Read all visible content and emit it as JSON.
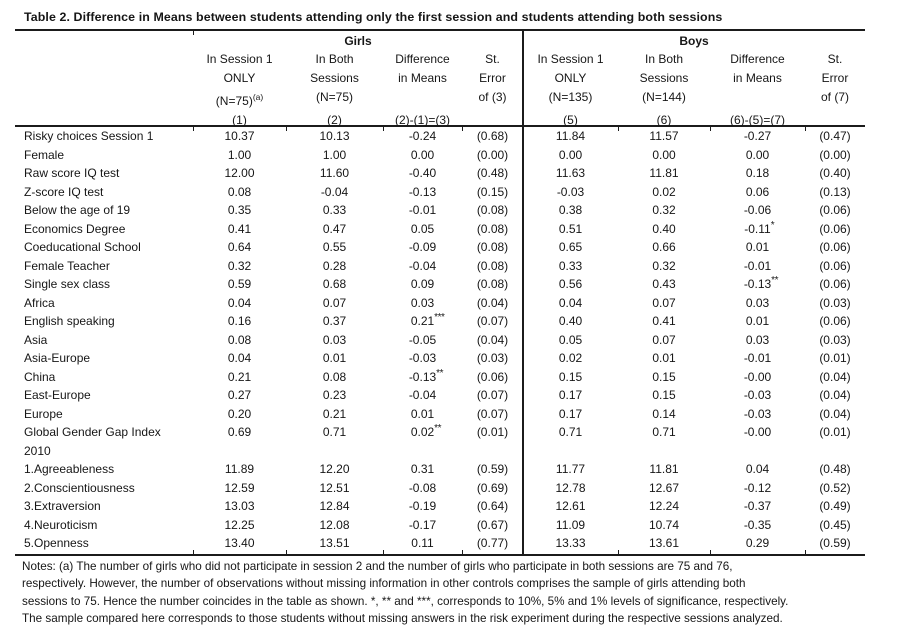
{
  "title": "Table 2. Difference in Means between students attending only the first session and students attending both sessions",
  "table": {
    "groups": {
      "girls": "Girls",
      "boys": "Boys"
    },
    "headers": {
      "g1": {
        "l1": "In Session 1",
        "l2": "ONLY",
        "l3": "(N=75)",
        "l3_sup": "(a)",
        "l4": "(1)"
      },
      "g2": {
        "l1": "In Both",
        "l2": "Sessions",
        "l3": "(N=75)",
        "l4": "(2)"
      },
      "g3": {
        "l1": "Difference",
        "l2": "in Means",
        "l3": "",
        "l4": "(2)-(1)=(3)"
      },
      "g4": {
        "l1": "St.",
        "l2": "Error",
        "l3": "of (3)",
        "l4": ""
      },
      "b1": {
        "l1": "In Session 1",
        "l2": "ONLY",
        "l3": "(N=135)",
        "l4": "(5)"
      },
      "b2": {
        "l1": "In Both",
        "l2": "Sessions",
        "l3": "(N=144)",
        "l4": "(6)"
      },
      "b3": {
        "l1": "Difference",
        "l2": "in Means",
        "l3": "",
        "l4": "(6)-(5)=(7)"
      },
      "b4": {
        "l1": "St.",
        "l2": "Error",
        "l3": "of (7)",
        "l4": ""
      }
    },
    "rows": [
      {
        "label": "Risky choices Session 1",
        "g1": "10.37",
        "g2": "10.13",
        "g3": "-0.24",
        "g3_sig": "",
        "g4": "(0.68)",
        "b1": "11.84",
        "b2": "11.57",
        "b3": "-0.27",
        "b3_sig": "",
        "b4": "(0.47)"
      },
      {
        "label": "Female",
        "g1": "1.00",
        "g2": "1.00",
        "g3": "0.00",
        "g3_sig": "",
        "g4": "(0.00)",
        "b1": "0.00",
        "b2": "0.00",
        "b3": "0.00",
        "b3_sig": "",
        "b4": "(0.00)"
      },
      {
        "label": "Raw score IQ test",
        "g1": "12.00",
        "g2": "11.60",
        "g3": "-0.40",
        "g3_sig": "",
        "g4": "(0.48)",
        "b1": "11.63",
        "b2": "11.81",
        "b3": "0.18",
        "b3_sig": "",
        "b4": "(0.40)"
      },
      {
        "label": "Z-score IQ test",
        "g1": "0.08",
        "g2": "-0.04",
        "g3": "-0.13",
        "g3_sig": "",
        "g4": "(0.15)",
        "b1": "-0.03",
        "b2": "0.02",
        "b3": "0.06",
        "b3_sig": "",
        "b4": "(0.13)"
      },
      {
        "label": "Below the age of 19",
        "g1": "0.35",
        "g2": "0.33",
        "g3": "-0.01",
        "g3_sig": "",
        "g4": "(0.08)",
        "b1": "0.38",
        "b2": "0.32",
        "b3": "-0.06",
        "b3_sig": "",
        "b4": "(0.06)"
      },
      {
        "label": "Economics Degree",
        "g1": "0.41",
        "g2": "0.47",
        "g3": "0.05",
        "g3_sig": "",
        "g4": "(0.08)",
        "b1": "0.51",
        "b2": "0.40",
        "b3": "-0.11",
        "b3_sig": "*",
        "b4": "(0.06)"
      },
      {
        "label": "Coeducational School",
        "g1": "0.64",
        "g2": "0.55",
        "g3": "-0.09",
        "g3_sig": "",
        "g4": "(0.08)",
        "b1": "0.65",
        "b2": "0.66",
        "b3": "0.01",
        "b3_sig": "",
        "b4": "(0.06)"
      },
      {
        "label": "Female Teacher",
        "g1": "0.32",
        "g2": "0.28",
        "g3": "-0.04",
        "g3_sig": "",
        "g4": "(0.08)",
        "b1": "0.33",
        "b2": "0.32",
        "b3": "-0.01",
        "b3_sig": "",
        "b4": "(0.06)"
      },
      {
        "label": "Single sex class",
        "g1": "0.59",
        "g2": "0.68",
        "g3": "0.09",
        "g3_sig": "",
        "g4": "(0.08)",
        "b1": "0.56",
        "b2": "0.43",
        "b3": "-0.13",
        "b3_sig": "**",
        "b4": "(0.06)"
      },
      {
        "label": "Africa",
        "g1": "0.04",
        "g2": "0.07",
        "g3": "0.03",
        "g3_sig": "",
        "g4": "(0.04)",
        "b1": "0.04",
        "b2": "0.07",
        "b3": "0.03",
        "b3_sig": "",
        "b4": "(0.03)"
      },
      {
        "label": "English speaking",
        "g1": "0.16",
        "g2": "0.37",
        "g3": "0.21",
        "g3_sig": "***",
        "g4": "(0.07)",
        "b1": "0.40",
        "b2": "0.41",
        "b3": "0.01",
        "b3_sig": "",
        "b4": "(0.06)"
      },
      {
        "label": "Asia",
        "g1": "0.08",
        "g2": "0.03",
        "g3": "-0.05",
        "g3_sig": "",
        "g4": "(0.04)",
        "b1": "0.05",
        "b2": "0.07",
        "b3": "0.03",
        "b3_sig": "",
        "b4": "(0.03)"
      },
      {
        "label": "Asia-Europe",
        "g1": "0.04",
        "g2": "0.01",
        "g3": "-0.03",
        "g3_sig": "",
        "g4": "(0.03)",
        "b1": "0.02",
        "b2": "0.01",
        "b3": "-0.01",
        "b3_sig": "",
        "b4": "(0.01)"
      },
      {
        "label": "China",
        "g1": "0.21",
        "g2": "0.08",
        "g3": "-0.13",
        "g3_sig": "**",
        "g4": "(0.06)",
        "b1": "0.15",
        "b2": "0.15",
        "b3": "-0.00",
        "b3_sig": "",
        "b4": "(0.04)"
      },
      {
        "label": "East-Europe",
        "g1": "0.27",
        "g2": "0.23",
        "g3": "-0.04",
        "g3_sig": "",
        "g4": "(0.07)",
        "b1": "0.17",
        "b2": "0.15",
        "b3": "-0.03",
        "b3_sig": "",
        "b4": "(0.04)"
      },
      {
        "label": "Europe",
        "g1": "0.20",
        "g2": "0.21",
        "g3": "0.01",
        "g3_sig": "",
        "g4": "(0.07)",
        "b1": "0.17",
        "b2": "0.14",
        "b3": "-0.03",
        "b3_sig": "",
        "b4": "(0.04)"
      },
      {
        "label": "Global Gender Gap Index",
        "label2": "2010",
        "g1": "0.69",
        "g2": "0.71",
        "g3": "0.02",
        "g3_sig": "**",
        "g4": "(0.01)",
        "b1": "0.71",
        "b2": "0.71",
        "b3": "-0.00",
        "b3_sig": "",
        "b4": "(0.01)"
      },
      {
        "label": "1.Agreeableness",
        "g1": "11.89",
        "g2": "12.20",
        "g3": "0.31",
        "g3_sig": "",
        "g4": "(0.59)",
        "b1": "11.77",
        "b2": "11.81",
        "b3": "0.04",
        "b3_sig": "",
        "b4": "(0.48)"
      },
      {
        "label": "2.Conscientiousness",
        "g1": "12.59",
        "g2": "12.51",
        "g3": "-0.08",
        "g3_sig": "",
        "g4": "(0.69)",
        "b1": "12.78",
        "b2": "12.67",
        "b3": "-0.12",
        "b3_sig": "",
        "b4": "(0.52)"
      },
      {
        "label": "3.Extraversion",
        "g1": "13.03",
        "g2": "12.84",
        "g3": "-0.19",
        "g3_sig": "",
        "g4": "(0.64)",
        "b1": "12.61",
        "b2": "12.24",
        "b3": "-0.37",
        "b3_sig": "",
        "b4": "(0.49)"
      },
      {
        "label": "4.Neuroticism",
        "g1": "12.25",
        "g2": "12.08",
        "g3": "-0.17",
        "g3_sig": "",
        "g4": "(0.67)",
        "b1": "11.09",
        "b2": "10.74",
        "b3": "-0.35",
        "b3_sig": "",
        "b4": "(0.45)"
      },
      {
        "label": "5.Openness",
        "g1": "13.40",
        "g2": "13.51",
        "g3": "0.11",
        "g3_sig": "",
        "g4": "(0.77)",
        "b1": "13.33",
        "b2": "13.61",
        "b3": "0.29",
        "b3_sig": "",
        "b4": "(0.59)"
      }
    ]
  },
  "notes": {
    "line1": "Notes: (a) The number of girls who did not participate in session 2 and the number of girls who participate in both sessions are 75 and 76,",
    "line2": "respectively. However, the number of observations without missing information in other controls comprises the sample of girls attending both",
    "line3": "sessions to 75. Hence the number coincides in the table as shown. *, ** and ***, corresponds to 10%, 5% and 1% levels of significance, respectively.",
    "line4": "The sample compared here corresponds to those students without missing answers in the risk experiment during the respective sessions analyzed."
  }
}
